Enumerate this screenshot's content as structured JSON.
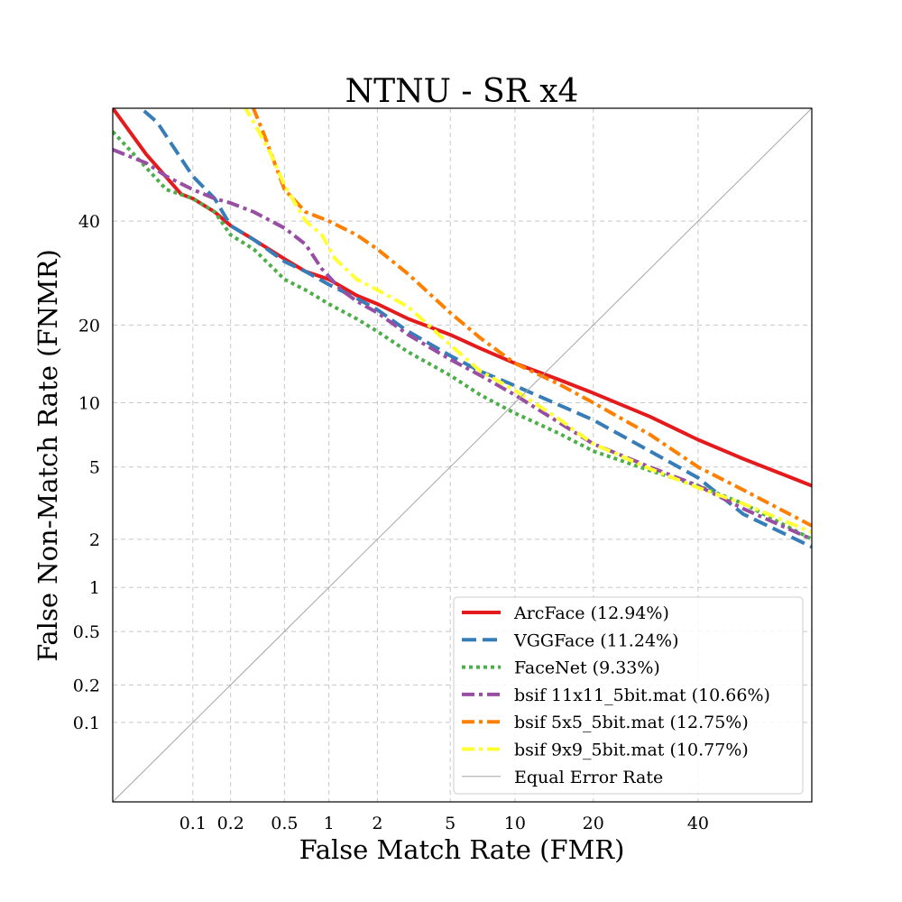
{
  "chart_data": {
    "type": "line",
    "title": "NTNU - SR x4",
    "xlabel": "False Match Rate (FMR)",
    "ylabel": "False Non-Match Rate (FNMR)",
    "scale": "probit",
    "xlim": [
      0.02,
      65
    ],
    "ylim": [
      0.02,
      65
    ],
    "xticks": [
      {
        "value": 0.1,
        "label": "0.1"
      },
      {
        "value": 0.2,
        "label": "0.2"
      },
      {
        "value": 0.5,
        "label": "0.5"
      },
      {
        "value": 1,
        "label": "1"
      },
      {
        "value": 2,
        "label": "2"
      },
      {
        "value": 5,
        "label": "5"
      },
      {
        "value": 10,
        "label": "10"
      },
      {
        "value": 20,
        "label": "20"
      },
      {
        "value": 40,
        "label": "40"
      }
    ],
    "yticks": [
      {
        "value": 0.1,
        "label": "0.1"
      },
      {
        "value": 0.2,
        "label": "0.2"
      },
      {
        "value": 0.5,
        "label": "0.5"
      },
      {
        "value": 1,
        "label": "1"
      },
      {
        "value": 2,
        "label": "2"
      },
      {
        "value": 5,
        "label": "5"
      },
      {
        "value": 10,
        "label": "10"
      },
      {
        "value": 20,
        "label": "20"
      },
      {
        "value": 40,
        "label": "40"
      }
    ],
    "grid": true,
    "legend_position": "lower-right",
    "series": [
      {
        "name": "ArcFace (12.94%)",
        "color": "#e41a1c",
        "style": "solid",
        "x": [
          0.02,
          0.04,
          0.08,
          0.1,
          0.15,
          0.2,
          0.3,
          0.5,
          0.7,
          1,
          1.5,
          2,
          3,
          5,
          7,
          10,
          15,
          20,
          30,
          40,
          50,
          65
        ],
        "y": [
          65,
          55,
          46,
          45,
          42,
          39,
          36,
          32,
          29.5,
          28,
          25,
          23.5,
          21,
          18.5,
          16.5,
          14.5,
          12.5,
          11,
          8.7,
          6.8,
          5.5,
          4.0
        ]
      },
      {
        "name": "VGGFace (11.24%)",
        "color": "#377eb8",
        "style": "dashed",
        "x": [
          0.02,
          0.05,
          0.08,
          0.1,
          0.15,
          0.2,
          0.3,
          0.5,
          0.7,
          1,
          1.5,
          2,
          3,
          5,
          7,
          10,
          15,
          20,
          30,
          40,
          50,
          65
        ],
        "y": [
          70,
          62,
          54,
          50,
          45,
          39,
          36,
          31.5,
          29.5,
          27,
          24.5,
          22.5,
          19,
          15.5,
          13.5,
          11.8,
          9.8,
          8.4,
          6.0,
          4.4,
          2.8,
          1.8
        ]
      },
      {
        "name": "FaceNet (9.33%)",
        "color": "#4daf4a",
        "style": "dotted",
        "x": [
          0.02,
          0.04,
          0.06,
          0.1,
          0.15,
          0.2,
          0.3,
          0.5,
          0.7,
          1,
          1.5,
          2,
          3,
          5,
          7,
          10,
          15,
          20,
          30,
          40,
          50,
          65
        ],
        "y": [
          60,
          52,
          47,
          45,
          42,
          37,
          34,
          28,
          26,
          23.5,
          21,
          19,
          16,
          13,
          10.8,
          9,
          7.3,
          6.0,
          4.8,
          4.0,
          3.2,
          2.0
        ]
      },
      {
        "name": "bsif 11x11_5bit.mat (10.66%)",
        "color": "#984ea3",
        "style": "dashdot",
        "x": [
          0.02,
          0.04,
          0.06,
          0.1,
          0.15,
          0.2,
          0.3,
          0.5,
          0.7,
          0.9,
          1.2,
          1.5,
          2,
          3,
          5,
          7,
          10,
          15,
          20,
          30,
          40,
          50,
          65
        ],
        "y": [
          56,
          53,
          50,
          47,
          45,
          44,
          42,
          38.5,
          35,
          30,
          26,
          24,
          22,
          18.5,
          15,
          13,
          10.8,
          8.2,
          6.5,
          5.0,
          4.0,
          3.0,
          2.0
        ]
      },
      {
        "name": "bsif 5x5_5bit.mat (12.75%)",
        "color": "#ff7f00",
        "style": "dashdot",
        "x": [
          0.25,
          0.35,
          0.5,
          0.7,
          1,
          1.5,
          2,
          3,
          5,
          7,
          10,
          15,
          20,
          30,
          40,
          50,
          65
        ],
        "y": [
          70,
          60,
          47,
          42,
          40,
          37,
          34,
          29,
          22,
          18,
          14.5,
          12,
          10,
          7.2,
          5.0,
          3.8,
          2.4
        ]
      },
      {
        "name": "bsif 9x9_5bit.mat (10.77%)",
        "color": "#ffff33",
        "style": "dashdot",
        "x": [
          0.2,
          0.3,
          0.4,
          0.5,
          0.7,
          0.9,
          1.1,
          1.5,
          2,
          3,
          5,
          7,
          10,
          15,
          20,
          30,
          40,
          50,
          65
        ],
        "y": [
          70,
          62,
          55,
          48,
          40,
          37,
          32,
          28,
          26,
          23,
          17,
          13.5,
          11.3,
          8.5,
          6.5,
          4.9,
          3.9,
          3.2,
          2.2
        ]
      },
      {
        "name": "Equal Error Rate",
        "color": "#a6a6a6",
        "style": "thin",
        "x": [
          0.02,
          65
        ],
        "y": [
          0.02,
          65
        ]
      }
    ]
  }
}
